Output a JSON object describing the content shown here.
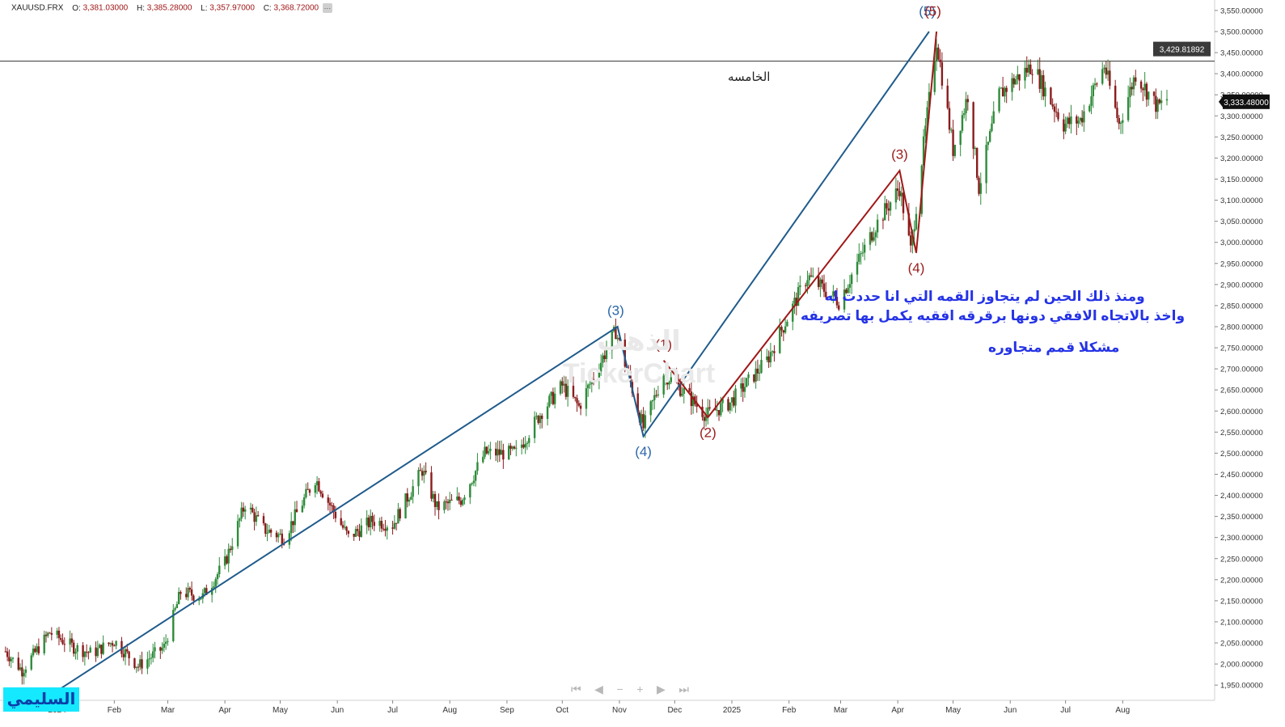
{
  "header": {
    "symbol": "XAUUSD.FRX",
    "open_label": "O:",
    "open": "3,381.03000",
    "high_label": "H:",
    "high": "3,385.28000",
    "low_label": "L:",
    "low": "3,357.97000",
    "close_label": "C:",
    "close": "3,368.72000"
  },
  "price_badges": {
    "level": "3,429.81892",
    "last": "3,333.48000"
  },
  "annotations": {
    "fifth": "الخامسه",
    "line1": "ومنذ ذلك الحين لم يتجاوز القمه التي انا حددت له",
    "line2": "واخذ بالاتجاه الافقي دونها برقرقه افقيه يكمل بها تصريفه",
    "line3": "مشكلا قمم متجاوره"
  },
  "watermark": {
    "arabic": "الذهب",
    "brand": "TickerChart"
  },
  "brand_badge": "السليمي",
  "nav": {
    "first": "⏮",
    "prev": "◀",
    "zoom_out": "−",
    "zoom_in": "+",
    "next": "▶",
    "last": "⏭"
  },
  "colors": {
    "up": "#2e8b3a",
    "down": "#8a1c1c",
    "wave_blue": "#1f5b8c",
    "wave_red": "#a01818",
    "label_blue": "#2b66a8",
    "label_red": "#9b1b1b",
    "annotation": "#2533e6",
    "badge_bg": "#15e9ff"
  },
  "chart_data": {
    "type": "candlestick",
    "symbol": "XAUUSD.FRX",
    "ylim": [
      1920,
      3580
    ],
    "y_ticks": [
      "3,550.00000",
      "3,500.00000",
      "3,450.00000",
      "3,400.00000",
      "3,350.00000",
      "3,300.00000",
      "3,250.00000",
      "3,200.00000",
      "3,150.00000",
      "3,100.00000",
      "3,050.00000",
      "3,000.00000",
      "2,950.00000",
      "2,900.00000",
      "2,850.00000",
      "2,800.00000",
      "2,750.00000",
      "2,700.00000",
      "2,650.00000",
      "2,600.00000",
      "2,550.00000",
      "2,500.00000",
      "2,450.00000",
      "2,400.00000",
      "2,350.00000",
      "2,300.00000",
      "2,250.00000",
      "2,200.00000",
      "2,150.00000",
      "2,100.00000",
      "2,050.00000",
      "2,000.00000",
      "1,950.00000"
    ],
    "x_labels": [
      {
        "label": "2024",
        "date": "2024-01-01"
      },
      {
        "label": "Feb",
        "date": "2024-02-01"
      },
      {
        "label": "Mar",
        "date": "2024-03-01"
      },
      {
        "label": "Apr",
        "date": "2024-04-01"
      },
      {
        "label": "May",
        "date": "2024-05-01"
      },
      {
        "label": "Jun",
        "date": "2024-06-01"
      },
      {
        "label": "Jul",
        "date": "2024-07-01"
      },
      {
        "label": "Aug",
        "date": "2024-08-01"
      },
      {
        "label": "Sep",
        "date": "2024-09-01"
      },
      {
        "label": "Oct",
        "date": "2024-10-01"
      },
      {
        "label": "Nov",
        "date": "2024-11-01"
      },
      {
        "label": "Dec",
        "date": "2024-12-01"
      },
      {
        "label": "2025",
        "date": "2025-01-01"
      },
      {
        "label": "Feb",
        "date": "2025-02-01"
      },
      {
        "label": "Mar",
        "date": "2025-03-01"
      },
      {
        "label": "Apr",
        "date": "2025-04-01"
      },
      {
        "label": "May",
        "date": "2025-05-01"
      },
      {
        "label": "Jun",
        "date": "2025-06-01"
      },
      {
        "label": "Jul",
        "date": "2025-07-01"
      },
      {
        "label": "Aug",
        "date": "2025-08-01"
      }
    ],
    "price_path": [
      [
        "2023-12-04",
        2030
      ],
      [
        "2023-12-13",
        1985
      ],
      [
        "2023-12-28",
        2075
      ],
      [
        "2024-01-10",
        2040
      ],
      [
        "2024-01-20",
        2025
      ],
      [
        "2024-02-01",
        2055
      ],
      [
        "2024-02-14",
        1995
      ],
      [
        "2024-02-28",
        2040
      ],
      [
        "2024-03-08",
        2170
      ],
      [
        "2024-03-20",
        2160
      ],
      [
        "2024-04-01",
        2240
      ],
      [
        "2024-04-12",
        2380
      ],
      [
        "2024-04-22",
        2320
      ],
      [
        "2024-05-03",
        2300
      ],
      [
        "2024-05-20",
        2440
      ],
      [
        "2024-06-07",
        2300
      ],
      [
        "2024-06-20",
        2340
      ],
      [
        "2024-07-01",
        2330
      ],
      [
        "2024-07-17",
        2460
      ],
      [
        "2024-07-25",
        2370
      ],
      [
        "2024-08-07",
        2390
      ],
      [
        "2024-08-20",
        2500
      ],
      [
        "2024-09-06",
        2500
      ],
      [
        "2024-09-20",
        2600
      ],
      [
        "2024-10-01",
        2660
      ],
      [
        "2024-10-10",
        2610
      ],
      [
        "2024-10-30",
        2790
      ],
      [
        "2024-11-14",
        2560
      ],
      [
        "2024-11-25",
        2690
      ],
      [
        "2024-12-05",
        2650
      ],
      [
        "2024-12-18",
        2590
      ],
      [
        "2024-12-31",
        2620
      ],
      [
        "2025-01-20",
        2720
      ],
      [
        "2025-02-11",
        2920
      ],
      [
        "2025-02-28",
        2860
      ],
      [
        "2025-03-20",
        3040
      ],
      [
        "2025-04-02",
        3130
      ],
      [
        "2025-04-08",
        2980
      ],
      [
        "2025-04-22",
        3480
      ],
      [
        "2025-05-01",
        3220
      ],
      [
        "2025-05-09",
        3350
      ],
      [
        "2025-05-15",
        3130
      ],
      [
        "2025-05-26",
        3350
      ],
      [
        "2025-06-02",
        3380
      ],
      [
        "2025-06-13",
        3420
      ],
      [
        "2025-06-20",
        3360
      ],
      [
        "2025-06-30",
        3280
      ],
      [
        "2025-07-09",
        3290
      ],
      [
        "2025-07-22",
        3420
      ],
      [
        "2025-07-30",
        3280
      ],
      [
        "2025-08-08",
        3400
      ],
      [
        "2025-08-20",
        3320
      ],
      [
        "2025-08-25",
        3340
      ]
    ],
    "horizontal_line": 3429.81892,
    "last_price": 3333.48,
    "wave_blue": {
      "points": [
        [
          "2023-12-28",
          1925
        ],
        [
          "2024-10-31",
          2800
        ],
        [
          "2024-11-14",
          2540
        ],
        [
          "2025-04-18",
          3500
        ]
      ],
      "labels": [
        {
          "text": "(3)",
          "date": "2024-10-30",
          "price": 2820,
          "pos": "above"
        },
        {
          "text": "(4)",
          "date": "2024-11-14",
          "price": 2520,
          "pos": "below"
        },
        {
          "text": "(5)",
          "date": "2025-04-17",
          "price": 3530,
          "pos": "above"
        }
      ]
    },
    "wave_red": {
      "points": [
        [
          "2024-11-25",
          2720
        ],
        [
          "2024-12-19",
          2585
        ],
        [
          "2025-04-02",
          3170
        ],
        [
          "2025-04-11",
          2975
        ],
        [
          "2025-04-22",
          3500
        ]
      ],
      "labels": [
        {
          "text": "(1)",
          "date": "2024-11-25",
          "price": 2740,
          "pos": "above"
        },
        {
          "text": "(2)",
          "date": "2024-12-19",
          "price": 2565,
          "pos": "below"
        },
        {
          "text": "(3)",
          "date": "2025-04-02",
          "price": 3190,
          "pos": "above"
        },
        {
          "text": "(4)",
          "date": "2025-04-11",
          "price": 2955,
          "pos": "below"
        },
        {
          "text": "(5)",
          "date": "2025-04-20",
          "price": 3530,
          "pos": "above"
        }
      ]
    }
  }
}
